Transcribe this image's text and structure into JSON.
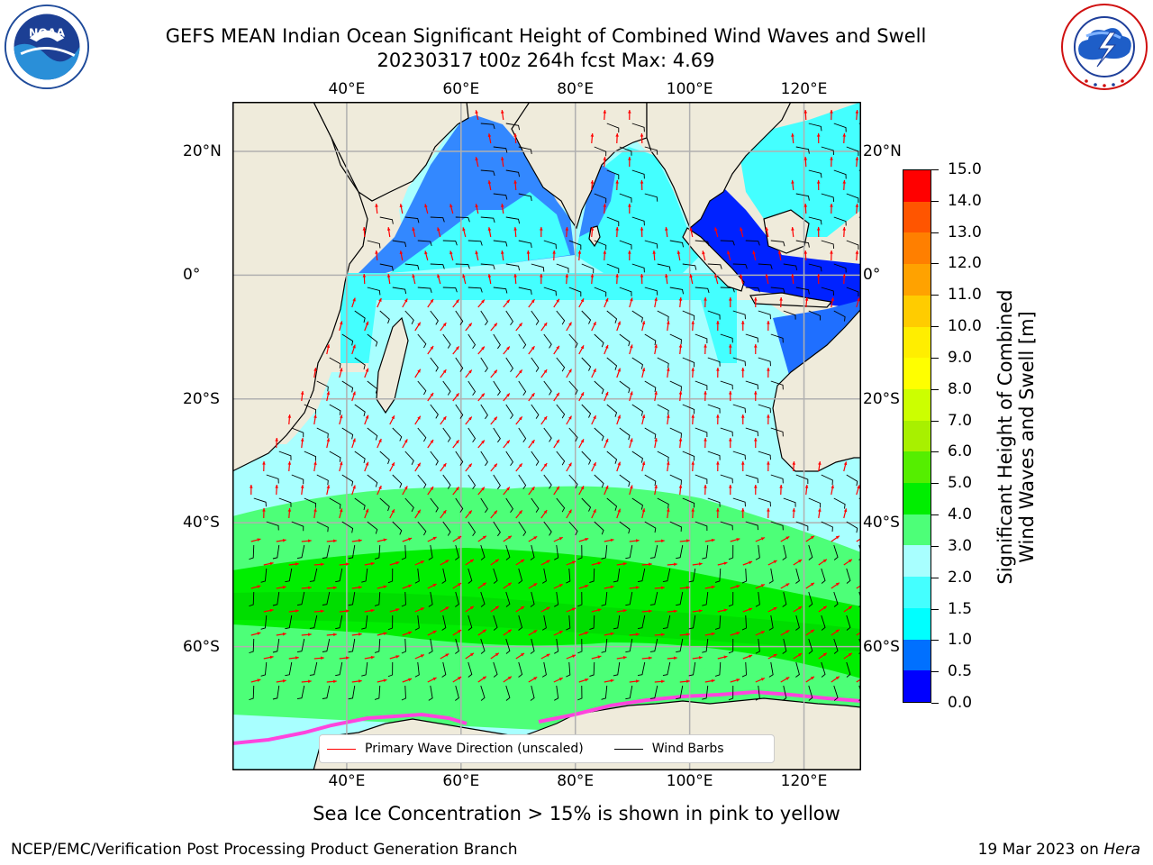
{
  "header": {
    "title_line1": "GEFS MEAN Indian Ocean Significant Height of Combined Wind Waves and Swell",
    "title_line2": "20230317 t00z 264h fcst   Max: 4.69"
  },
  "logos": {
    "noaa": {
      "text": "NOAA",
      "ring_text": "NATIONAL OCEANIC AND ATMOSPHERIC ADMINISTRATION · U.S. DEPARTMENT OF COMMERCE"
    },
    "nws": {
      "ring_text": "NATIONAL WEATHER SERVICE"
    }
  },
  "map": {
    "lon_ticks": [
      "40°E",
      "60°E",
      "80°E",
      "100°E",
      "120°E"
    ],
    "lat_ticks": [
      "20°N",
      "0°",
      "20°S",
      "40°S",
      "60°S"
    ],
    "lon_values": [
      40,
      60,
      80,
      100,
      120
    ],
    "lat_values": [
      20,
      0,
      -20,
      -40,
      -60
    ],
    "lon_range": [
      20,
      130
    ],
    "lat_range": [
      28,
      -80
    ],
    "grid": true,
    "colors": {
      "land": "#efebdb",
      "wave_arrow": "#ff0000",
      "wind_barb": "#000000",
      "sea_ice": "#ff44dd",
      "grid": "#b0b0b0"
    }
  },
  "colorbar": {
    "title_line1": "Significant Height of Combined",
    "title_line2": "Wind Waves and Swell [m]",
    "labels": [
      "0.0",
      "0.5",
      "1.0",
      "1.5",
      "2.0",
      "3.0",
      "4.0",
      "5.0",
      "6.0",
      "7.0",
      "8.0",
      "9.0",
      "10.0",
      "11.0",
      "12.0",
      "13.0",
      "14.0",
      "15.0"
    ],
    "colors": [
      "#0000ff",
      "#0070ff",
      "#00ffff",
      "#44ffff",
      "#a8ffff",
      "#4dff78",
      "#00ee00",
      "#55ee00",
      "#a8f000",
      "#ccff00",
      "#ffff00",
      "#ffee00",
      "#ffcc00",
      "#ffa200",
      "#ff7f00",
      "#ff5500",
      "#ff0000"
    ]
  },
  "legend": {
    "wave_label": "Primary Wave Direction (unscaled)",
    "wind_label": "Wind Barbs"
  },
  "subtitle": "Sea Ice Concentration > 15% is shown in pink to yellow",
  "footer": {
    "left": "NCEP/EMC/Verification Post Processing Product Generation Branch",
    "right_prefix": "19 Mar 2023 on ",
    "right_machine": "Hera"
  }
}
